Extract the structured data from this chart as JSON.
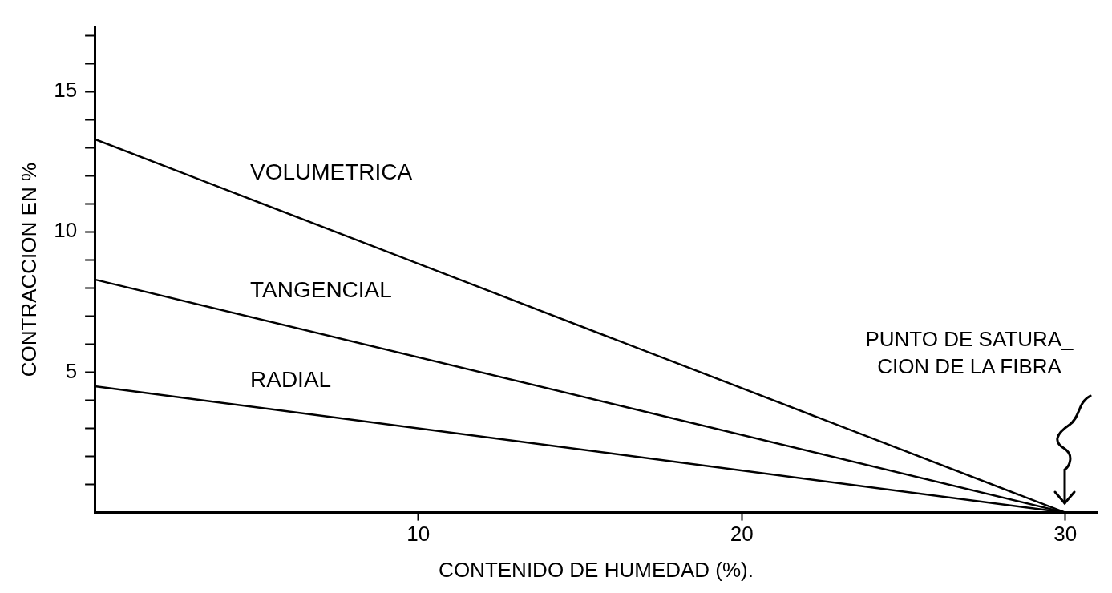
{
  "chart_data": {
    "type": "line",
    "xlabel": "CONTENIDO DE HUMEDAD (%).",
    "ylabel": "CONTRACCION EN %",
    "x": [
      0,
      30
    ],
    "series": [
      {
        "name": "VOLUMETRICA",
        "color": "#000000",
        "values": [
          13.3,
          0
        ]
      },
      {
        "name": "TANGENCIAL",
        "color": "#000000",
        "values": [
          8.3,
          0
        ]
      },
      {
        "name": "RADIAL",
        "color": "#000000",
        "values": [
          4.5,
          0
        ]
      }
    ],
    "xlim": [
      0,
      31
    ],
    "xticks": [
      10,
      20,
      30
    ],
    "ylim": [
      0,
      17.3
    ],
    "yticks": [
      {
        "value": 1,
        "label": null
      },
      {
        "value": 2,
        "label": null
      },
      {
        "value": 3,
        "label": null
      },
      {
        "value": 4,
        "label": null
      },
      5,
      {
        "value": 6,
        "label": null
      },
      {
        "value": 7,
        "label": null
      },
      {
        "value": 8,
        "label": null
      },
      {
        "value": 9,
        "label": null
      },
      10,
      {
        "value": 11,
        "label": null
      },
      {
        "value": 12,
        "label": null
      },
      {
        "value": 13,
        "label": null
      },
      {
        "value": 14,
        "label": null
      },
      15,
      {
        "value": 16,
        "label": null
      },
      {
        "value": 17,
        "label": null
      }
    ],
    "annotations": [
      "PUNTO DE SATURA_\nCION DE LA FIBRA"
    ],
    "grid": false,
    "legend": false,
    "marker": "none",
    "line_style": "solid"
  }
}
